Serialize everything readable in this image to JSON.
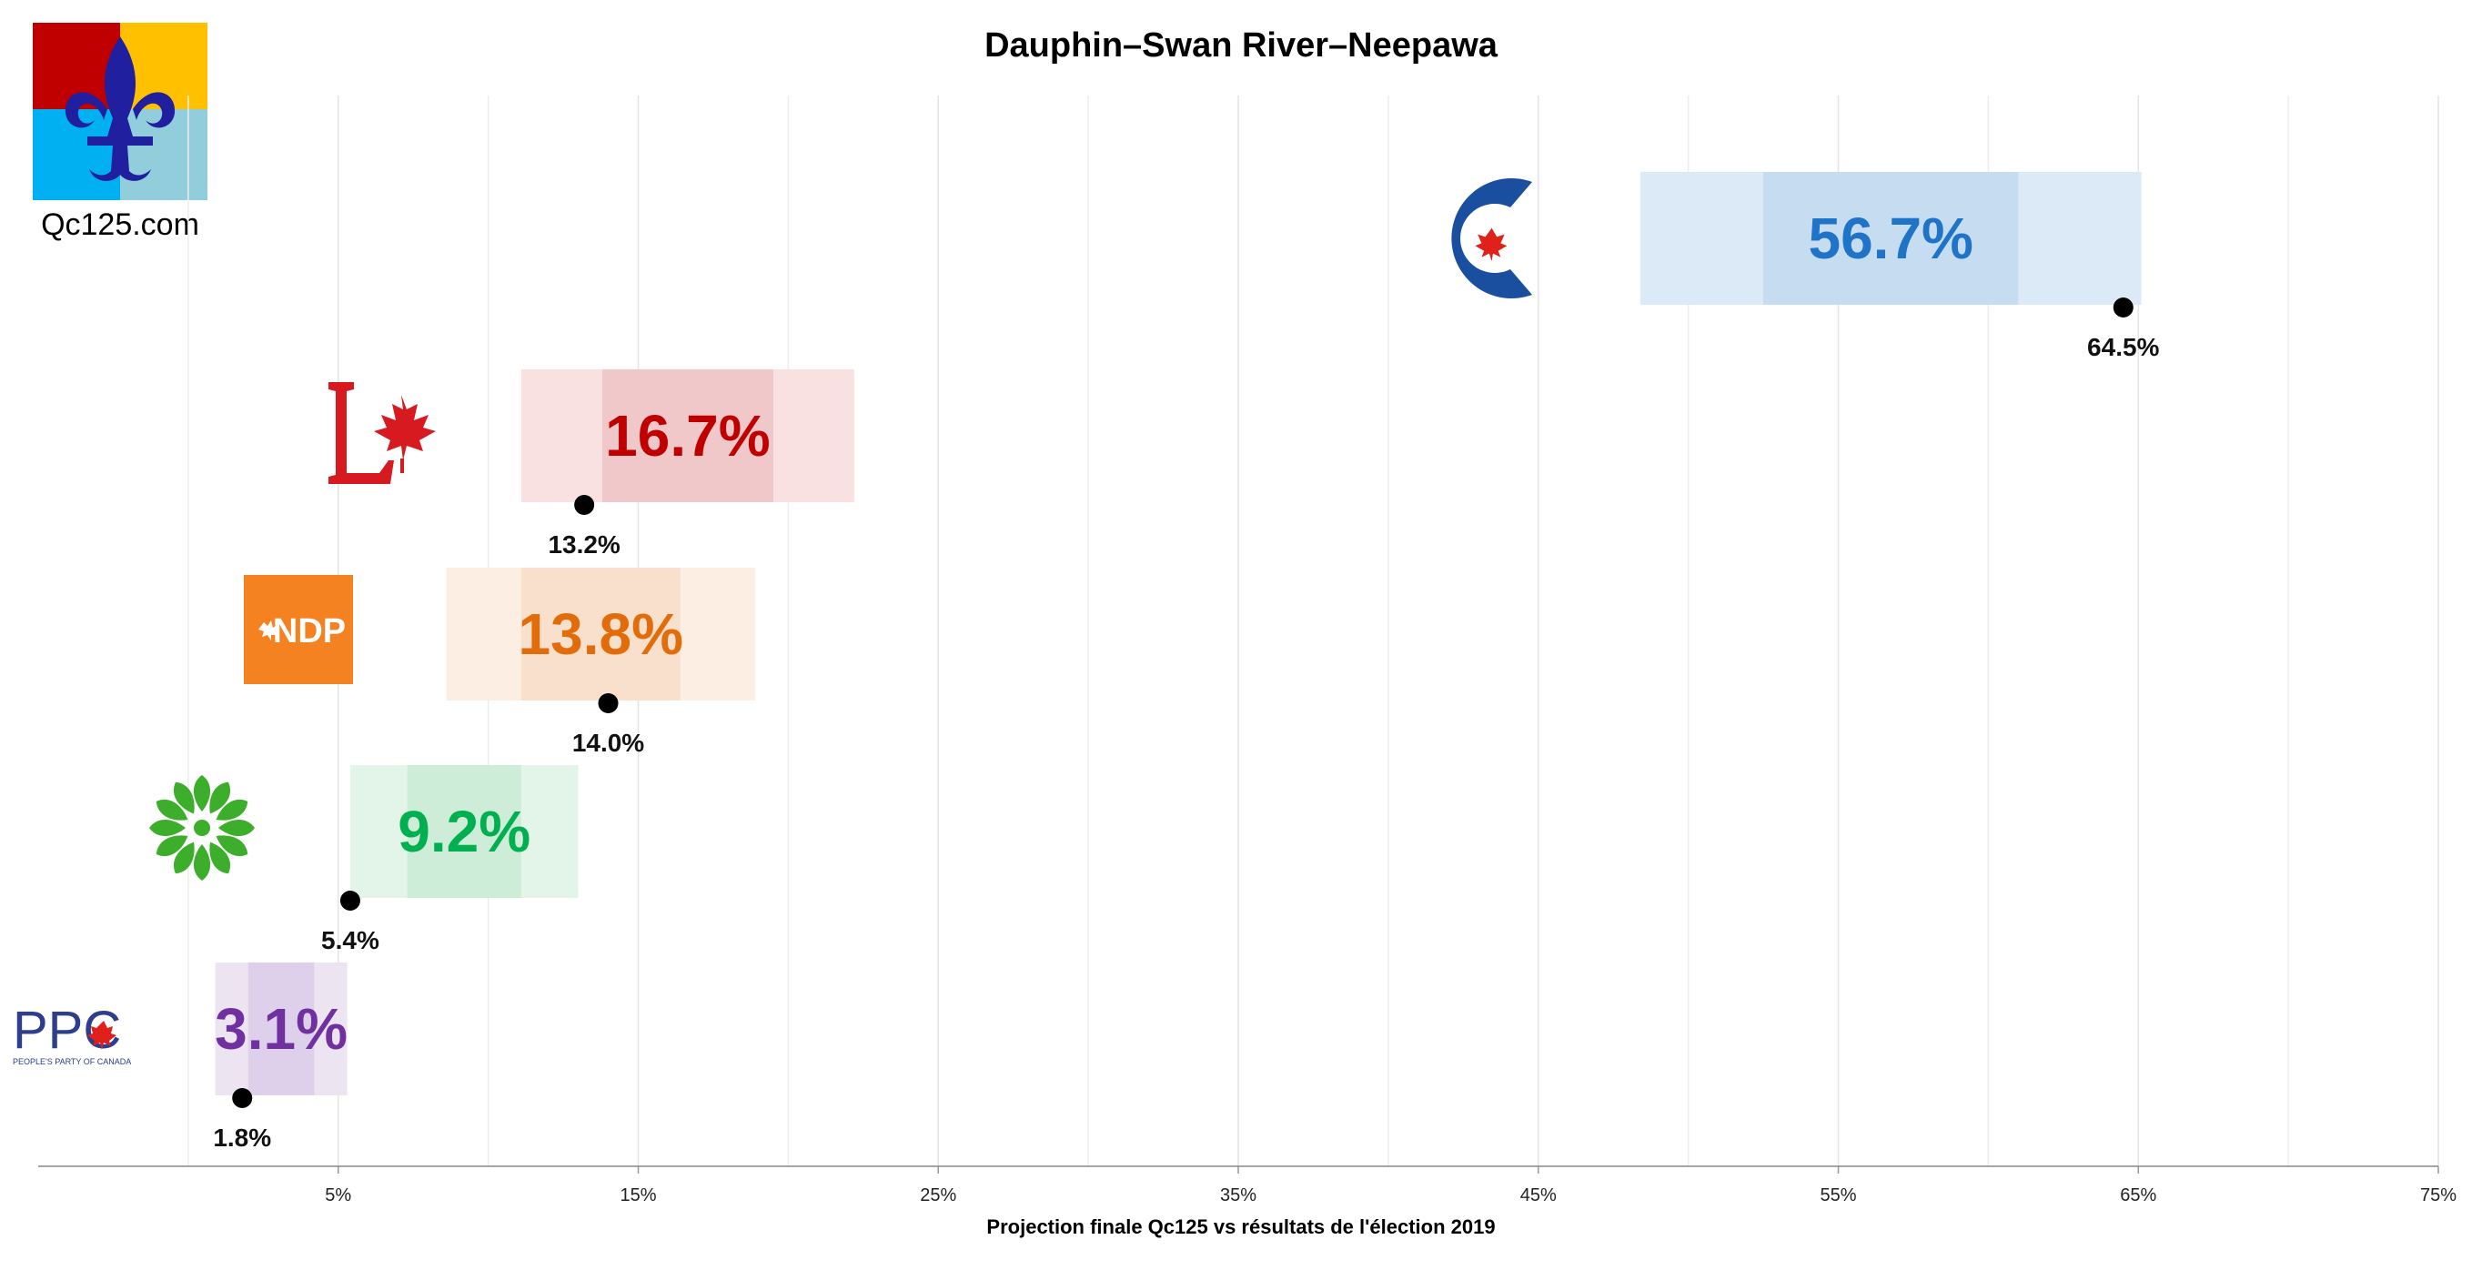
{
  "brand": {
    "logo_text": "Qc125.com"
  },
  "chart_data": {
    "type": "bar",
    "title": "Dauphin–Swan River–Neepawa",
    "xlabel": "Projection finale Qc125 vs résultats de l'élection 2019",
    "ylabel": "",
    "xlim": [
      -5,
      75
    ],
    "x_ticks": [
      5,
      15,
      25,
      35,
      45,
      55,
      65,
      75
    ],
    "x_tick_labels": [
      "5%",
      "15%",
      "25%",
      "35%",
      "45%",
      "55%",
      "65%",
      "75%"
    ],
    "grid": true,
    "series": [
      {
        "party": "CPC",
        "logo": "cpc-logo",
        "projection": 56.7,
        "projection_label": "56.7%",
        "likely_range": [
          52.5,
          61.0
        ],
        "full_range": [
          48.4,
          65.1
        ],
        "result_2019": 64.5,
        "result_label": "64.5%",
        "color": "#1F74C8",
        "light_color": "#DCE9F6",
        "mid_color": "#C6DCF0"
      },
      {
        "party": "LPC",
        "logo": "lpc-logo",
        "projection": 16.7,
        "projection_label": "16.7%",
        "likely_range": [
          13.8,
          19.5
        ],
        "full_range": [
          11.1,
          22.2
        ],
        "result_2019": 13.2,
        "result_label": "13.2%",
        "color": "#C00000",
        "light_color": "#F9E1E1",
        "mid_color": "#F1C8CA"
      },
      {
        "party": "NDP",
        "logo": "ndp-logo",
        "projection": 13.8,
        "projection_label": "13.8%",
        "likely_range": [
          11.1,
          16.4
        ],
        "full_range": [
          8.6,
          18.9
        ],
        "result_2019": 14.0,
        "result_label": "14.0%",
        "color": "#E36C0A",
        "light_color": "#FCEEE2",
        "mid_color": "#F9E0CC"
      },
      {
        "party": "GPC",
        "logo": "gpc-logo",
        "projection": 9.2,
        "projection_label": "9.2%",
        "likely_range": [
          7.3,
          11.1
        ],
        "full_range": [
          5.4,
          13.0
        ],
        "result_2019": 5.4,
        "result_label": "5.4%",
        "color": "#00B050",
        "light_color": "#E3F5E9",
        "mid_color": "#CDEDD8"
      },
      {
        "party": "PPC",
        "logo": "ppc-logo",
        "projection": 3.1,
        "projection_label": "3.1%",
        "likely_range": [
          2.0,
          4.2
        ],
        "full_range": [
          0.9,
          5.3
        ],
        "result_2019": 1.8,
        "result_label": "1.8%",
        "color": "#7030A0",
        "light_color": "#EDE4F2",
        "mid_color": "#DED0EA"
      }
    ],
    "ppc_logo_text": "PPC",
    "ppc_logo_subtext": "PEOPLE'S PARTY OF CANADA",
    "ndp_logo_text": "NDP"
  }
}
